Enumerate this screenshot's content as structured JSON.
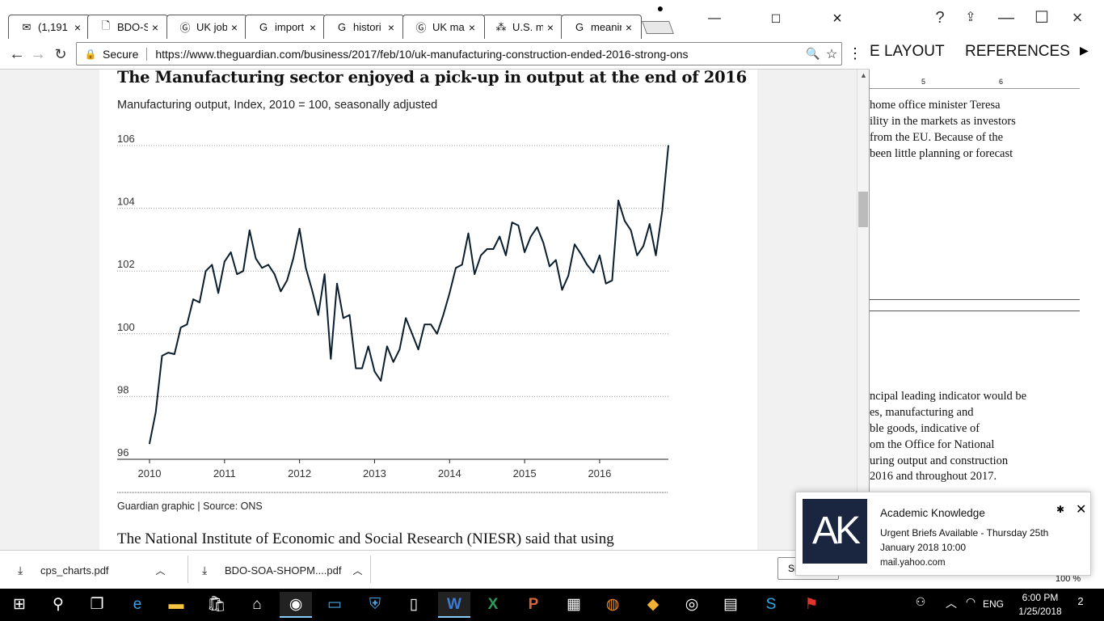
{
  "browser": {
    "tabs": [
      {
        "label": "(1,191",
        "icon": "mail-icon",
        "glyph": "✉"
      },
      {
        "label": "BDO-S",
        "icon": "document-icon",
        "glyph": "🗋"
      },
      {
        "label": "UK job",
        "icon": "guardian-icon",
        "glyph": "Ⓖ"
      },
      {
        "label": "import",
        "icon": "google-icon",
        "glyph": "G"
      },
      {
        "label": "histori",
        "icon": "google-icon",
        "glyph": "G"
      },
      {
        "label": "UK ma",
        "icon": "guardian-icon",
        "glyph": "Ⓖ"
      },
      {
        "label": "U.S. m",
        "icon": "dots-icon",
        "glyph": "⁂"
      },
      {
        "label": "meanir",
        "icon": "google-icon",
        "glyph": "G"
      }
    ],
    "secure_label": "Secure",
    "url": "https://www.theguardian.com/business/2017/feb/10/uk-manufacturing-construction-ended-2016-strong-ons"
  },
  "article": {
    "chart_title": "The Manufacturing sector enjoyed a pick-up in output at the end of 2016",
    "chart_subtitle": "Manufacturing output, Index, 2010 = 100, seasonally adjusted",
    "source": "Guardian graphic | Source: ONS",
    "body_text": "The National Institute of Economic and Social Research (NIESR) said that using"
  },
  "chart_data": {
    "type": "line",
    "title": "The Manufacturing sector enjoyed a pick-up in output at the end of 2016",
    "subtitle": "Manufacturing output, Index, 2010 = 100, seasonally adjusted",
    "xlabel": "",
    "ylabel": "",
    "x_ticks": [
      "2010",
      "2011",
      "2012",
      "2013",
      "2014",
      "2015",
      "2016"
    ],
    "y_ticks": [
      96,
      98,
      100,
      102,
      104,
      106
    ],
    "ylim": [
      96,
      106
    ],
    "xlim": [
      "2010-01",
      "2016-12"
    ],
    "grid": true,
    "color": "#0b1e2d",
    "series": [
      {
        "x": [
          "2010-01",
          "2010-02",
          "2010-03",
          "2010-04",
          "2010-05",
          "2010-06",
          "2010-07",
          "2010-08",
          "2010-09",
          "2010-10",
          "2010-11",
          "2010-12",
          "2011-01",
          "2011-02",
          "2011-03",
          "2011-04",
          "2011-05",
          "2011-06",
          "2011-07",
          "2011-08",
          "2011-09",
          "2011-10",
          "2011-11",
          "2011-12",
          "2012-01",
          "2012-02",
          "2012-03",
          "2012-04",
          "2012-05",
          "2012-06",
          "2012-07",
          "2012-08",
          "2012-09",
          "2012-10",
          "2012-11",
          "2012-12",
          "2013-01",
          "2013-02",
          "2013-03",
          "2013-04",
          "2013-05",
          "2013-06",
          "2013-07",
          "2013-08",
          "2013-09",
          "2013-10",
          "2013-11",
          "2013-12",
          "2014-01",
          "2014-02",
          "2014-03",
          "2014-04",
          "2014-05",
          "2014-06",
          "2014-07",
          "2014-08",
          "2014-09",
          "2014-10",
          "2014-11",
          "2014-12",
          "2015-01",
          "2015-02",
          "2015-03",
          "2015-04",
          "2015-05",
          "2015-06",
          "2015-07",
          "2015-08",
          "2015-09",
          "2015-10",
          "2015-11",
          "2015-12",
          "2016-01",
          "2016-02",
          "2016-03",
          "2016-04",
          "2016-05",
          "2016-06",
          "2016-07",
          "2016-08",
          "2016-09",
          "2016-10",
          "2016-11",
          "2016-12"
        ],
        "values": [
          96.5,
          97.5,
          99.3,
          99.4,
          99.35,
          100.2,
          100.3,
          101.1,
          101.0,
          102.0,
          102.2,
          101.3,
          102.3,
          102.6,
          101.9,
          102.0,
          103.3,
          102.4,
          102.1,
          102.2,
          101.9,
          101.35,
          101.7,
          102.4,
          103.35,
          102.1,
          101.4,
          100.6,
          101.9,
          99.2,
          101.6,
          100.5,
          100.6,
          98.9,
          98.9,
          99.6,
          98.8,
          98.5,
          99.6,
          99.1,
          99.5,
          100.5,
          100.0,
          99.5,
          100.3,
          100.3,
          100.0,
          100.6,
          101.3,
          102.1,
          102.2,
          103.2,
          101.9,
          102.5,
          102.7,
          102.7,
          103.1,
          102.5,
          103.55,
          103.45,
          102.6,
          103.1,
          103.4,
          102.9,
          102.15,
          102.35,
          101.4,
          101.85,
          102.85,
          102.55,
          102.2,
          101.95,
          102.5,
          101.6,
          101.7,
          104.25,
          103.6,
          103.3,
          102.5,
          102.8,
          103.5,
          102.5,
          103.9,
          106.0
        ]
      }
    ]
  },
  "downloads": [
    {
      "name": "cps_charts.pdf"
    },
    {
      "name": "BDO-SOA-SHOPM....pdf"
    }
  ],
  "show_all_label": "Show all",
  "word": {
    "tab_layout": "E LAYOUT",
    "tab_references": "REFERENCES",
    "ruler_marks": [
      "5",
      "6"
    ],
    "lines_top": [
      "home office minister Teresa",
      "ility in the markets as investors",
      "from the EU. Because of the",
      "been little planning or forecast"
    ],
    "lines_bottom": [
      "ncipal leading indicator would be",
      "es, manufacturing and",
      "ble goods, indicative of",
      "om the Office for National",
      "uring output and construction",
      "2016 and throughout 2017."
    ],
    "zoom": "100 %"
  },
  "toast": {
    "logo_text": "AK",
    "title": "Academic Knowledge",
    "body": "Urgent Briefs Available - Thursday 25th January 2018 10:00",
    "source": "mail.yahoo.com"
  },
  "taskbar": {
    "language": "ENG",
    "time": "6:00 PM",
    "date": "1/25/2018",
    "notification_count": "2"
  }
}
